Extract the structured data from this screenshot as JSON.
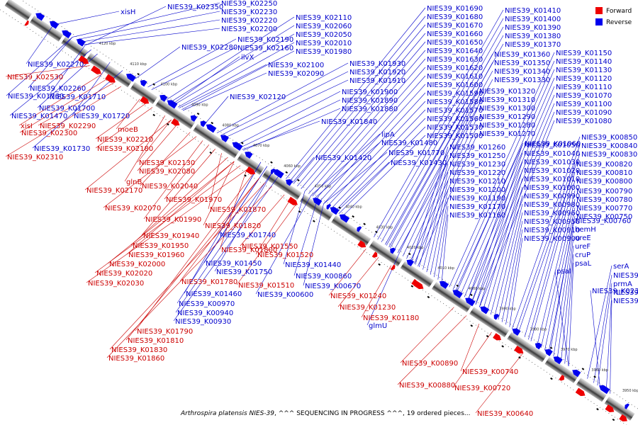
{
  "caption": {
    "organism": "Arthrospira platensis NIES-39",
    "status": ", ^^^ SEQUENCING IN PROGRESS ^^^, 19 ordered pieces..."
  },
  "legend": {
    "placement": "top-right",
    "items": [
      {
        "label": "Forward",
        "color": "#ee0000"
      },
      {
        "label": "Reverse",
        "color": "#0000ee"
      }
    ]
  },
  "scale_ticks": [
    "4120 kbp",
    "4110 kbp",
    "4100 kbp",
    "4090 kbp",
    "4080 kbp",
    "4070 kbp",
    "4060 kbp",
    "4050 kbp",
    "4040 kbp",
    "4030 kbp",
    "4020 kbp",
    "4010 kbp",
    "4000 kbp",
    "3990 kbp",
    "3980 kbp",
    "3970 kbp",
    "3960 kbp",
    "3950 kbp"
  ],
  "reverse_genes": [
    "xisH",
    "NIES39_K02350",
    "NIES39_K02250",
    "NIES39_K02230",
    "NIES39_K02220",
    "NIES39_K02200",
    "NIES39_K02280",
    "NIES39_K02190",
    "NIES39_K02160",
    "ilvX",
    "NIES39_K02110",
    "NIES39_K02060",
    "NIES39_K02050",
    "NIES39_K02010",
    "NIES39_K01980",
    "NIES39_K02100",
    "NIES39_K02090",
    "NIES39_K01930",
    "NIES39_K01920",
    "NIES39_K01910",
    "NIES39_K02120",
    "NIES39_K01900",
    "NIES39_K01890",
    "NIES39_K01880",
    "NIES39_K01840",
    "NIES39_K01690",
    "NIES39_K01680",
    "NIES39_K01670",
    "NIES39_K01660",
    "NIES39_K01650",
    "NIES39_K01640",
    "NIES39_K01630",
    "NIES39_K01620",
    "NIES39_K01610",
    "NIES39_K01600",
    "NIES39_K01590",
    "NIES39_K01580",
    "NIES39_K01570",
    "NIES39_K01560",
    "NIES39_K01530",
    "NIES39_K01500",
    "lipA",
    "NIES39_K01480",
    "NIES39_K01770",
    "NIES39_K01430",
    "NIES39_K01420",
    "NIES39_K01410",
    "NIES39_K01400",
    "NIES39_K01390",
    "NIES39_K01380",
    "NIES39_K01370",
    "NIES39_K01360",
    "NIES39_K01350",
    "NIES39_K01340",
    "NIES39_K01330",
    "NIES39_K01320",
    "NIES39_K01310",
    "NIES39_K01300",
    "NIES39_K01290",
    "NIES39_K01280",
    "NIES39_K01270",
    "NIES39_K01260",
    "NIES39_K01250",
    "NIES39_K01230",
    "NIES39_K01220",
    "NIES39_K01210",
    "NIES39_K01200",
    "NIES39_K01190",
    "NIES39_K01170",
    "NIES39_K01160",
    "NIES39_K01150",
    "NIES39_K01140",
    "NIES39_K01130",
    "NIES39_K01120",
    "NIES39_K01110",
    "NIES39_K01070",
    "NIES39_K01100",
    "NIES39_K01090",
    "NIES39_K01080",
    "NIES39_K01060",
    "NIES39_K01050",
    "NIES39_K01040",
    "NIES39_K01030",
    "NIES39_K01020",
    "NIES39_K01010",
    "NIES39_K01000",
    "NIES39_K00990",
    "NIES39_K00980",
    "NIES39_K00960",
    "NIES39_K00950",
    "NIES39_K00910",
    "NIES39_K00900",
    "NIES39_K00850",
    "NIES39_K00840",
    "NIES39_K00830",
    "NIES39_K00820",
    "NIES39_K00810",
    "NIES39_K00800",
    "NIES39_K00790",
    "NIES39_K00780",
    "NIES39_K00770",
    "NIES39_K00750",
    "NIES39_K00760",
    "hemH",
    "ureE",
    "ureF",
    "cruP",
    "psaL",
    "psaI",
    "serA",
    "NIES39_K02440",
    "prmA",
    "NIES39_K02390",
    "NIES39_K02330",
    "NIES39_K02400",
    "NIES39_K02270",
    "NIES39_K02260",
    "NIES39_K01760",
    "NIES39_K01710",
    "NIES39_K01700",
    "NIES39_K01470",
    "NIES39_K01720",
    "NIES39_K01730",
    "NIES39_K01740",
    "NIES39_K01750",
    "NIES39_K01450",
    "NIES39_K01440",
    "NIES39_K01460",
    "NIES39_K00970",
    "NIES39_K00940",
    "NIES39_K00930",
    "NIES39_K00860",
    "NIES39_K00670",
    "NIES39_K00600",
    "glmU"
  ],
  "forward_genes": [
    "NIES39_K02530",
    "xisI",
    "NIES39_K02290",
    "NIES39_K02300",
    "moeB",
    "NIES39_K02210",
    "NIES39_K02180",
    "NIES39_K02310",
    "NIES39_K02130",
    "NIES39_K02080",
    "glnB",
    "NIES39_K02170",
    "NIES39_K02040",
    "NIES39_K02070",
    "NIES39_K01970",
    "NIES39_K01870",
    "NIES39_K01990",
    "NIES39_K01820",
    "NIES39_K01940",
    "NIES39_K01950",
    "NIES39_K01960",
    "NIES39_K01800",
    "NIES39_K01550",
    "NIES39_K01520",
    "NIES39_K02000",
    "NIES39_K02020",
    "NIES39_K02030",
    "NIES39_K01780",
    "NIES39_K01510",
    "NIES39_K01790",
    "NIES39_K01810",
    "NIES39_K01830",
    "NIES39_K01860",
    "NIES39_K01240",
    "NIES39_K01230",
    "NIES39_K01180",
    "NIES39_K00890",
    "NIES39_K00740",
    "NIES39_K00880",
    "NIES39_K00720",
    "NIES39_K00640"
  ]
}
